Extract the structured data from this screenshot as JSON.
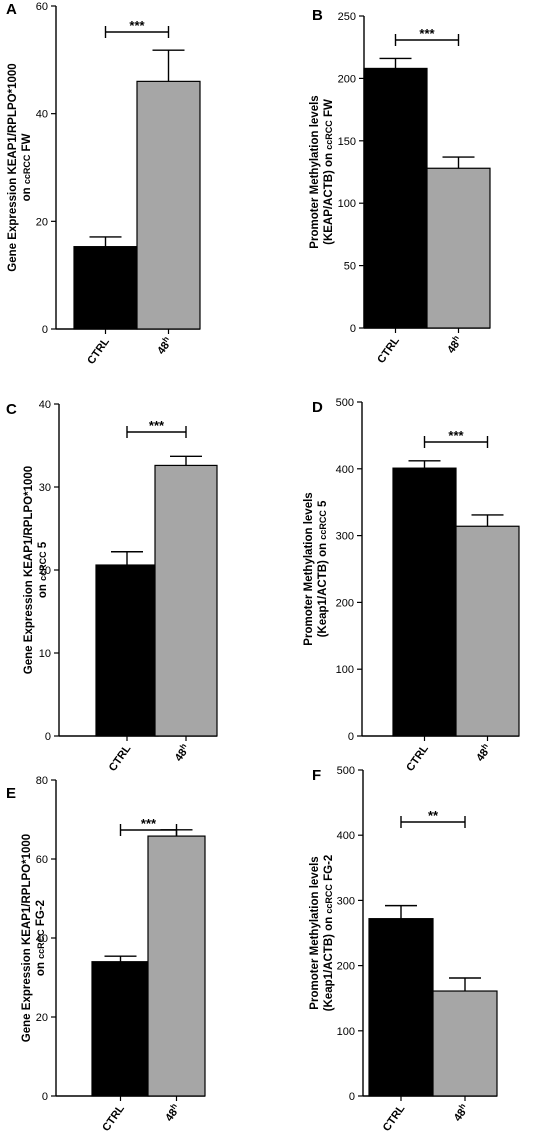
{
  "colors": {
    "ctrl": "#000000",
    "treated": "#a6a6a6",
    "axis": "#000000",
    "error": "#000000"
  },
  "chart_data": [
    {
      "panel": "A",
      "type": "bar",
      "categories": [
        "CTRL",
        "48"
      ],
      "category_superscripts": [
        "",
        "h"
      ],
      "values": [
        15.3,
        46.0
      ],
      "errors": [
        1.8,
        5.8
      ],
      "ylabel_line1": "Gene Expression KEAP1/RPLPO*1000",
      "ylabel_line2_pre": "on ",
      "ylabel_line2_small": "ccRCC",
      "ylabel_line2_post": " FW",
      "ylim": [
        0,
        60
      ],
      "yticks": [
        0,
        20,
        40,
        60
      ],
      "significance": "***"
    },
    {
      "panel": "B",
      "type": "bar",
      "categories": [
        "CTRL",
        "48"
      ],
      "category_superscripts": [
        "",
        "h"
      ],
      "values": [
        208,
        128
      ],
      "errors": [
        8,
        9
      ],
      "ylabel_line1": "Promoter Methylation levels",
      "ylabel_line2_pre": "(KEAP/ACTB) on ",
      "ylabel_line2_small": "ccRCC",
      "ylabel_line2_post": " FW",
      "ylim": [
        0,
        250
      ],
      "yticks": [
        0,
        50,
        100,
        150,
        200,
        250
      ],
      "significance": "***"
    },
    {
      "panel": "C",
      "type": "bar",
      "categories": [
        "CTRL",
        "48"
      ],
      "category_superscripts": [
        "",
        "h"
      ],
      "values": [
        20.6,
        32.6
      ],
      "errors": [
        1.6,
        1.1
      ],
      "ylabel_line1": "Gene Expression KEAP1/RPLPO*1000",
      "ylabel_line2_pre": "on ",
      "ylabel_line2_small": "ccRCC",
      "ylabel_line2_post": " 5",
      "ylim": [
        0,
        40
      ],
      "yticks": [
        0,
        10,
        20,
        30,
        40
      ],
      "significance": "***"
    },
    {
      "panel": "D",
      "type": "bar",
      "categories": [
        "CTRL",
        "48"
      ],
      "category_superscripts": [
        "",
        "h"
      ],
      "values": [
        401,
        314
      ],
      "errors": [
        11,
        17
      ],
      "ylabel_line1": "Promoter Methylation levels",
      "ylabel_line2_pre": "(Keap1/ACTB) on ",
      "ylabel_line2_small": "ccRCC",
      "ylabel_line2_post": " 5",
      "ylim": [
        0,
        500
      ],
      "yticks": [
        0,
        100,
        200,
        300,
        400,
        500
      ],
      "significance": "***"
    },
    {
      "panel": "E",
      "type": "bar",
      "categories": [
        "CTRL",
        "48"
      ],
      "category_superscripts": [
        "",
        "h"
      ],
      "values": [
        34.0,
        65.8
      ],
      "errors": [
        1.4,
        1.6
      ],
      "ylabel_line1": "Gene Expression KEAP1/RPLPO*1000",
      "ylabel_line2_pre": "on ",
      "ylabel_line2_small": "ccRCC",
      "ylabel_line2_post": " FG-2",
      "ylim": [
        0,
        80
      ],
      "yticks": [
        0,
        20,
        40,
        60,
        80
      ],
      "significance": "***"
    },
    {
      "panel": "F",
      "type": "bar",
      "categories": [
        "CTRL",
        "48"
      ],
      "category_superscripts": [
        "",
        "h"
      ],
      "values": [
        272,
        161
      ],
      "errors": [
        20,
        20
      ],
      "ylabel_line1": "Promoter Methylation levels",
      "ylabel_line2_pre": "(Keap1/ACTB) on ",
      "ylabel_line2_small": "ccRCC",
      "ylabel_line2_post": " FG-2",
      "ylim": [
        0,
        500
      ],
      "yticks": [
        0,
        100,
        200,
        300,
        400,
        500
      ],
      "significance": "**"
    }
  ]
}
